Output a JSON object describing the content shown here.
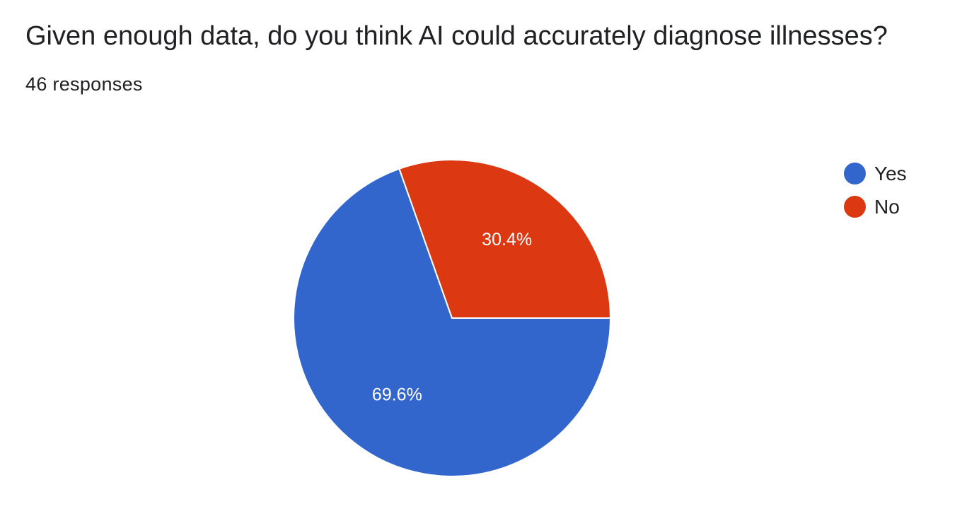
{
  "header": {
    "question": "Given enough data, do you think AI could accurately diagnose illnesses?",
    "responses": "46 responses"
  },
  "chart_data": {
    "type": "pie",
    "slices": [
      {
        "label": "Yes",
        "value": 69.6,
        "display": "69.6%",
        "color": "#3366cc"
      },
      {
        "label": "No",
        "value": 30.4,
        "display": "30.4%",
        "color": "#dc3912"
      }
    ],
    "legend_position": "right"
  }
}
